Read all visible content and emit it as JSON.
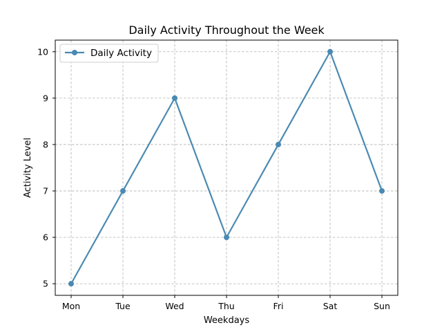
{
  "chart_data": {
    "type": "line",
    "title": "Daily Activity Throughout the Week",
    "xlabel": "Weekdays",
    "ylabel": "Activity Level",
    "categories": [
      "Mon",
      "Tue",
      "Wed",
      "Thu",
      "Fri",
      "Sat",
      "Sun"
    ],
    "series": [
      {
        "name": "Daily Activity",
        "values": [
          5,
          7,
          9,
          6,
          8,
          10,
          7
        ],
        "color": "#4a8ab2"
      }
    ],
    "ylim": [
      4.75,
      10.25
    ],
    "yticks": [
      5,
      6,
      7,
      8,
      9,
      10
    ],
    "grid": true,
    "legend": "top-left"
  }
}
